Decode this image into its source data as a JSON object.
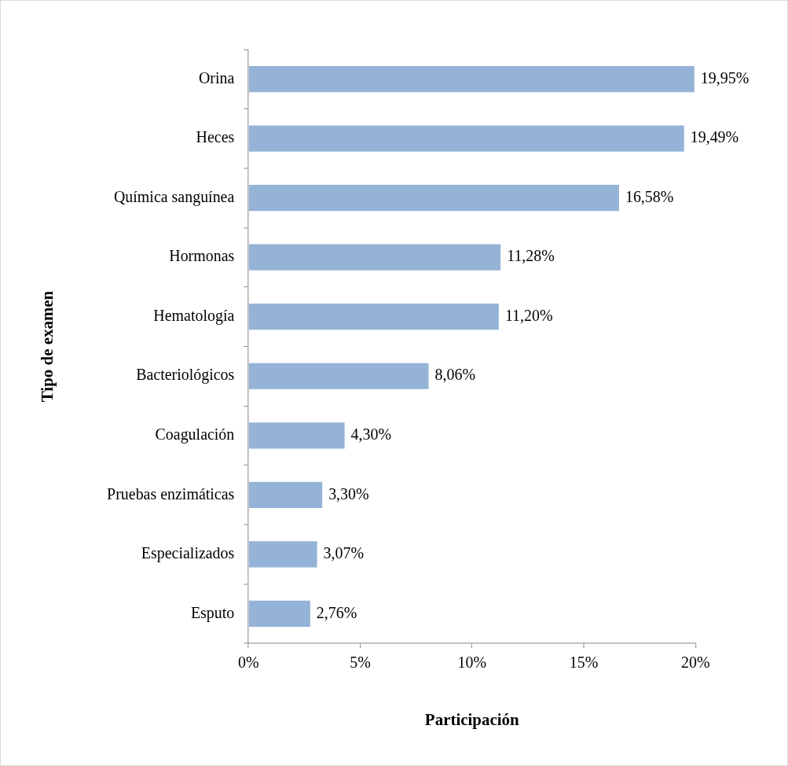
{
  "chart_data": {
    "type": "bar",
    "orientation": "horizontal",
    "xlabel": "Participación",
    "ylabel": "Tipo de examen",
    "categories": [
      "Orina",
      "Heces",
      "Química sanguínea",
      "Hormonas",
      "Hematología",
      "Bacteriológicos",
      "Coagulación",
      "Pruebas enzimáticas",
      "Especializados",
      "Esputo"
    ],
    "values": [
      19.95,
      19.49,
      16.58,
      11.28,
      11.2,
      8.06,
      4.3,
      3.3,
      3.07,
      2.76
    ],
    "value_labels": [
      "19,95%",
      "19,49%",
      "16,58%",
      "11,28%",
      "11,20%",
      "8,06%",
      "4,30%",
      "3,30%",
      "3,07%",
      "2,76%"
    ],
    "color": "#95b3d7",
    "xlim": [
      0,
      20
    ],
    "xticks": [
      {
        "value": 0,
        "label": "0%"
      },
      {
        "value": 5,
        "label": "5%"
      },
      {
        "value": 10,
        "label": "10%"
      },
      {
        "value": 15,
        "label": "15%"
      },
      {
        "value": 20,
        "label": "20%"
      }
    ],
    "grid": false,
    "legend": false
  }
}
